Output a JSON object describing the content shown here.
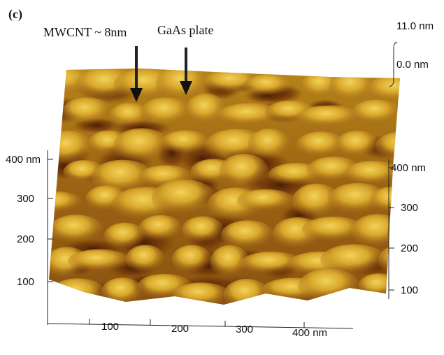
{
  "panel_label": "(c)",
  "annotations": [
    "MWCNT ~ 8nm",
    "GaAs plate"
  ],
  "z_axis": {
    "ticks": [
      "11.0 nm",
      "0.0 nm"
    ]
  },
  "left_axis": {
    "ticks": [
      "400 nm",
      "300",
      "200",
      "100"
    ]
  },
  "right_axis": {
    "ticks": [
      "400 nm",
      "300",
      "200",
      "100"
    ]
  },
  "bottom_axis": {
    "ticks": [
      "100",
      "200",
      "300",
      "400 nm"
    ]
  }
}
